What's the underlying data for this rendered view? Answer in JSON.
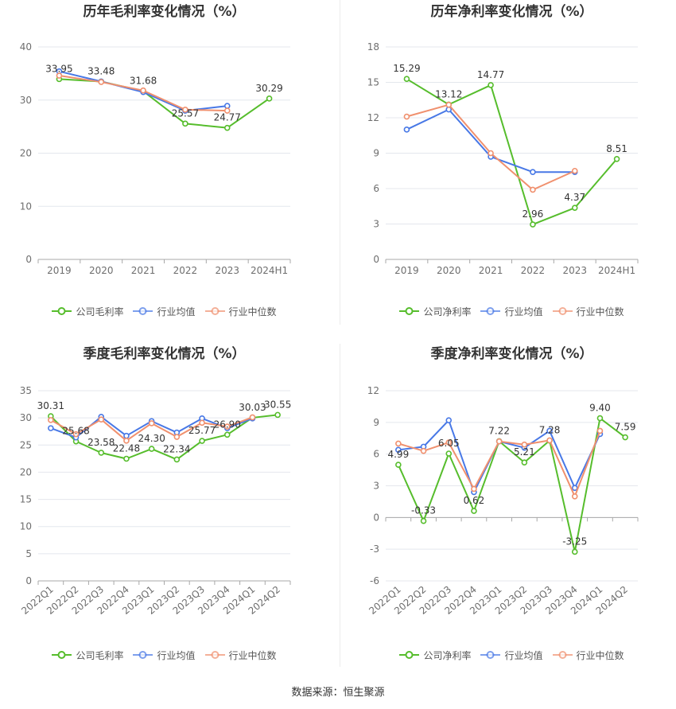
{
  "chart_data": [
    {
      "type": "line",
      "title": "历年毛利率变化情况（%）",
      "categories": [
        "2019",
        "2020",
        "2021",
        "2022",
        "2023",
        "2024H1"
      ],
      "ylim": [
        0,
        40
      ],
      "yticks": [
        0,
        10,
        20,
        30,
        40
      ],
      "grid": true,
      "legend": "bottom",
      "series": [
        {
          "name": "公司毛利率",
          "color": "#56bd2c",
          "values": [
            33.95,
            33.48,
            31.68,
            25.57,
            24.77,
            30.29
          ],
          "data_labels": [
            "33.95",
            "33.48",
            "31.68",
            "25.57",
            "24.77",
            "30.29"
          ]
        },
        {
          "name": "行业均值",
          "color": "#4878e6",
          "values": [
            35.4,
            33.5,
            31.5,
            28.0,
            28.9,
            null
          ]
        },
        {
          "name": "行业中位数",
          "color": "#f0906e",
          "values": [
            34.6,
            33.4,
            31.8,
            28.2,
            28.0,
            null
          ]
        }
      ]
    },
    {
      "type": "line",
      "title": "历年净利率变化情况（%）",
      "categories": [
        "2019",
        "2020",
        "2021",
        "2022",
        "2023",
        "2024H1"
      ],
      "ylim": [
        0,
        18
      ],
      "yticks": [
        0,
        3,
        6,
        9,
        12,
        15,
        18
      ],
      "grid": true,
      "legend": "bottom",
      "series": [
        {
          "name": "公司净利率",
          "color": "#56bd2c",
          "values": [
            15.29,
            13.12,
            14.77,
            2.96,
            4.37,
            8.51
          ],
          "data_labels": [
            "15.29",
            "13.12",
            "14.77",
            "2.96",
            "4.37",
            "8.51"
          ]
        },
        {
          "name": "行业均值",
          "color": "#4878e6",
          "values": [
            11.0,
            12.7,
            8.7,
            7.4,
            7.4,
            null
          ]
        },
        {
          "name": "行业中位数",
          "color": "#f0906e",
          "values": [
            12.1,
            13.1,
            9.0,
            5.9,
            7.5,
            null
          ]
        }
      ]
    },
    {
      "type": "line",
      "title": "季度毛利率变化情况（%）",
      "categories": [
        "2022Q1",
        "2022Q2",
        "2022Q3",
        "2022Q4",
        "2023Q1",
        "2023Q2",
        "2023Q3",
        "2023Q4",
        "2024Q1",
        "2024Q2"
      ],
      "ylim": [
        0,
        35
      ],
      "yticks": [
        0,
        5,
        10,
        15,
        20,
        25,
        30,
        35
      ],
      "grid": true,
      "legend": "bottom",
      "series": [
        {
          "name": "公司毛利率",
          "color": "#56bd2c",
          "values": [
            30.31,
            25.68,
            23.58,
            22.48,
            24.3,
            22.34,
            25.77,
            26.9,
            30.03,
            30.55
          ],
          "data_labels": [
            "30.31",
            "25.68",
            "23.58",
            "22.48",
            "24.30",
            "22.34",
            "25.77",
            "26.90",
            "30.03",
            "30.55"
          ]
        },
        {
          "name": "行业均值",
          "color": "#4878e6",
          "values": [
            28.1,
            26.4,
            30.2,
            26.7,
            29.4,
            27.3,
            29.9,
            28.1,
            29.9,
            null
          ]
        },
        {
          "name": "行业中位数",
          "color": "#f0906e",
          "values": [
            29.6,
            27.0,
            29.7,
            25.8,
            29.0,
            26.5,
            29.1,
            28.4,
            30.1,
            null
          ]
        }
      ]
    },
    {
      "type": "line",
      "title": "季度净利率变化情况（%）",
      "categories": [
        "2022Q1",
        "2022Q2",
        "2022Q3",
        "2022Q4",
        "2023Q1",
        "2023Q2",
        "2023Q3",
        "2023Q4",
        "2024Q1",
        "2024Q2"
      ],
      "ylim": [
        -6,
        12
      ],
      "yticks": [
        -6,
        -3,
        0,
        3,
        6,
        9,
        12
      ],
      "grid": true,
      "legend": "bottom",
      "series": [
        {
          "name": "公司净利率",
          "color": "#56bd2c",
          "values": [
            4.99,
            -0.33,
            6.05,
            0.62,
            7.22,
            5.21,
            7.28,
            -3.25,
            9.4,
            7.59
          ],
          "data_labels": [
            "4.99",
            "-0.33",
            "6.05",
            "0.62",
            "7.22",
            "5.21",
            "7.28",
            "-3.25",
            "9.40",
            "7.59"
          ]
        },
        {
          "name": "行业均值",
          "color": "#4878e6",
          "values": [
            6.4,
            6.7,
            9.2,
            2.4,
            7.2,
            6.6,
            8.2,
            2.8,
            7.9,
            null
          ]
        },
        {
          "name": "行业中位数",
          "color": "#f0906e",
          "values": [
            7.0,
            6.3,
            7.1,
            2.7,
            7.2,
            6.9,
            7.3,
            2.0,
            8.2,
            null
          ]
        }
      ]
    }
  ],
  "footer": "数据来源：恒生聚源"
}
